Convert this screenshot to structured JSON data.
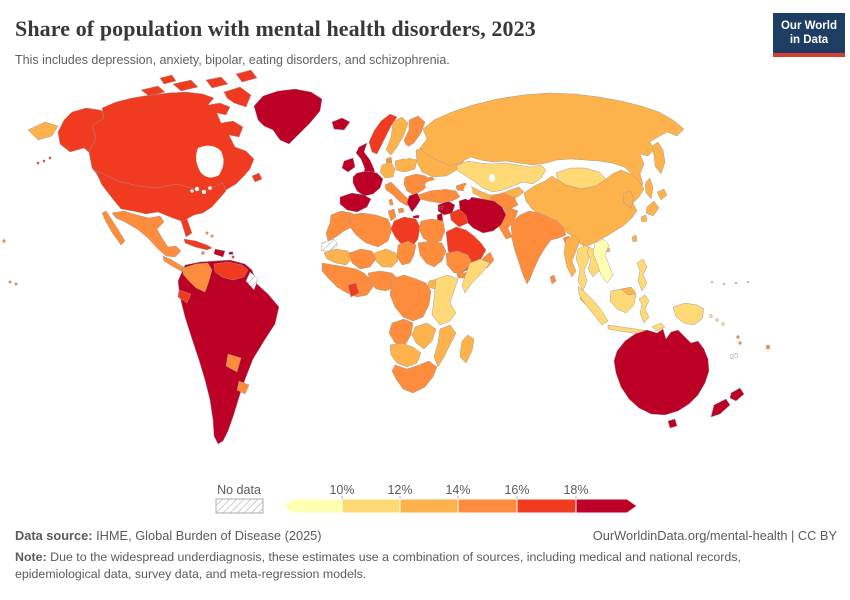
{
  "header": {
    "title": "Share of population with mental health disorders, 2023",
    "subtitle": "This includes depression, anxiety, bipolar, eating disorders, and schizophrenia."
  },
  "logo": {
    "line1": "Our World",
    "line2": "in Data"
  },
  "legend": {
    "no_data_label": "No data",
    "ticks": [
      "10%",
      "12%",
      "14%",
      "16%",
      "18%"
    ]
  },
  "footer": {
    "datasource_label": "Data source:",
    "datasource_text": " IHME, Global Burden of Disease (2025)",
    "credit": "OurWorldinData.org/mental-health | CC BY",
    "note_label": "Note:",
    "note_text": " Due to the widespread underdiagnosis, these estimates use a combination of sources, including medical and national records, epidemiological data, survey data, and meta-regression models."
  },
  "chart_data": {
    "type": "choropleth_map",
    "title": "Share of population with mental health disorders, 2023",
    "subtitle": "This includes depression, anxiety, bipolar, eating disorders, and schizophrenia.",
    "unit": "% of population",
    "year": 2023,
    "legend_position": "bottom",
    "bins": [
      {
        "label": "<10%",
        "color": "#FFFFB2"
      },
      {
        "label": "10-12%",
        "color": "#FED976"
      },
      {
        "label": "12-14%",
        "color": "#FEB24C"
      },
      {
        "label": "14-16%",
        "color": "#FD8D3C"
      },
      {
        "label": "16-18%",
        "color": "#F03B20"
      },
      {
        "label": ">18%",
        "color": "#BD0026"
      }
    ],
    "no_data": {
      "label": "No data",
      "pattern": "hatched"
    },
    "regions": {
      "russia_west_tip": 3,
      "alaska": 5,
      "canada": 5,
      "arctic_islands": 5,
      "newfoundland": 5,
      "greenland": 6,
      "usa": 5,
      "mexico": 4,
      "central_america": 4,
      "cuba": 5,
      "hispaniola": 6,
      "puerto_rico": 6,
      "jamaica": 4,
      "bahamas": 4,
      "lesser_antilles": 5,
      "south_america_core": 6,
      "colombia": 4,
      "venezuela": 5,
      "guyana_suriname": 0,
      "ecuador": 5,
      "paraguay": 4,
      "uruguay": 4,
      "iceland": 6,
      "ireland": 6,
      "united_kingdom": 6,
      "norway": 5,
      "sweden": 3,
      "finland": 4,
      "denmark": 4,
      "germany": 3,
      "central_europe": 3,
      "france": 6,
      "spain_portugal": 6,
      "italy": 4,
      "balkans": 4,
      "greece": 6,
      "romania": 4,
      "east_europe": 3,
      "russia": 3,
      "kazakhstan": 2,
      "central_asia": 3,
      "mongolia": 2,
      "china": 3,
      "korea": 3,
      "japan": 3,
      "taiwan": 3,
      "india": 4,
      "sri_lanka": 4,
      "pakistan": 4,
      "afghanistan": 4,
      "bangladesh": 4,
      "iran": 6,
      "iraq": 5,
      "syria_levant": 6,
      "israel_jordan": 6,
      "turkey": 4,
      "cyprus": 6,
      "caucasus": 4,
      "saudi_arabia": 5,
      "yemen": 4,
      "oman": 4,
      "morocco": 4,
      "western_sahara": 0,
      "algeria": 4,
      "tunisia": 4,
      "libya": 5,
      "egypt": 4,
      "mauritania": 3,
      "mali": 4,
      "niger": 3,
      "chad": 4,
      "sudan": 4,
      "west_africa": 4,
      "ghana_cote_divoire": 5,
      "nigeria": 4,
      "ethiopia": 4,
      "somalia": 2,
      "kenya_tanzania": 2,
      "uganda": 3,
      "drc_central_africa": 4,
      "angola": 4,
      "zambia_zimbabwe": 3,
      "mozambique": 3,
      "namibia_botswana": 3,
      "south_africa": 4,
      "madagascar": 3,
      "myanmar": 3,
      "thailand": 2,
      "laos_cambodia": 2,
      "vietnam": 1,
      "malaysia": 3,
      "indonesia": 2,
      "papua_new_guinea": 2,
      "philippines": 2,
      "australia": 6,
      "tasmania": 6,
      "new_zealand": 6,
      "new_caledonia": 0,
      "fiji": 4,
      "vanuatu": 4,
      "solomon_islands": 2,
      "micronesia": 2,
      "polynesia": 4
    }
  }
}
